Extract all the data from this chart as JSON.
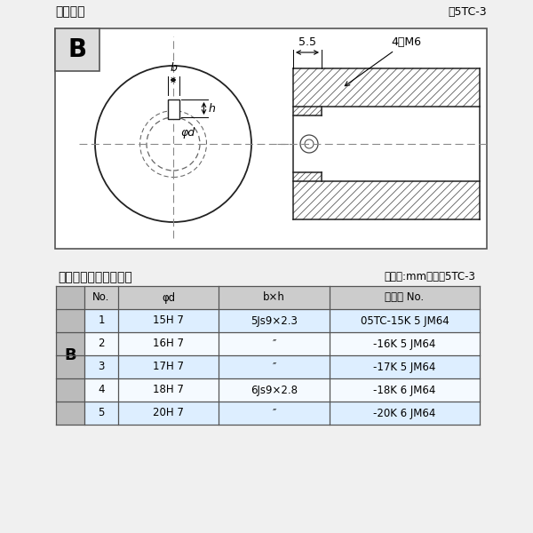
{
  "title_diagram": "軸穴形状",
  "fig_label": "図5TC-3",
  "table_title": "軸穴形状コード一覧表",
  "table_unit": "（単位:mm）　表5TC-3",
  "B_label": "B",
  "dim_55": "5.5",
  "dim_4M6": "4－M6",
  "dim_b": "b",
  "dim_h": "h",
  "dim_phid": "φd",
  "col_headers": [
    "No.",
    "φd",
    "b×h",
    "コード No."
  ],
  "rows": [
    [
      "1",
      "15H 7",
      "5Js9×2.3",
      "05TC-15K 5 JM64"
    ],
    [
      "2",
      "16H 7",
      "″",
      "-16K 5 JM64"
    ],
    [
      "3",
      "17H 7",
      "″",
      "-17K 5 JM64"
    ],
    [
      "4",
      "18H 7",
      "6Js9×2.8",
      "-18K 6 JM64"
    ],
    [
      "5",
      "20H 7",
      "″",
      "-20K 6 JM64"
    ]
  ],
  "bg_color": "#f0f0f0",
  "diagram_bg": "#ffffff",
  "table_header_bg": "#cccccc",
  "table_row_bg_alt": "#ddeeff",
  "table_row_bg_white": "#f5faff",
  "border_color": "#555555",
  "text_color": "#000000",
  "B_cell_bg": "#bbbbbb",
  "hatch_color": "#666666",
  "dash_color": "#888888",
  "dim_line_color": "#333333"
}
